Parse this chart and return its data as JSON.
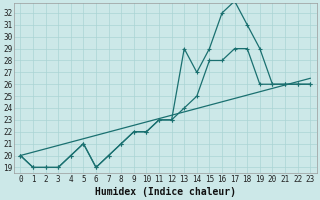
{
  "title": "",
  "xlabel": "Humidex (Indice chaleur)",
  "ylabel": "",
  "background_color": "#cce8e8",
  "line_color": "#1a7070",
  "xlim": [
    -0.5,
    23.5
  ],
  "ylim": [
    18.5,
    32.8
  ],
  "xticks": [
    0,
    1,
    2,
    3,
    4,
    5,
    6,
    7,
    8,
    9,
    10,
    11,
    12,
    13,
    14,
    15,
    16,
    17,
    18,
    19,
    20,
    21,
    22,
    23
  ],
  "yticks": [
    19,
    20,
    21,
    22,
    23,
    24,
    25,
    26,
    27,
    28,
    29,
    30,
    31,
    32
  ],
  "line1_x": [
    0,
    1,
    2,
    3,
    4,
    5,
    6,
    7,
    8,
    9,
    10,
    11,
    12,
    13,
    14,
    15,
    16,
    17,
    18,
    19,
    20,
    21,
    22,
    23
  ],
  "line1_y": [
    20,
    19,
    19,
    19,
    20,
    21,
    19,
    20,
    21,
    22,
    22,
    23,
    23,
    29,
    27,
    29,
    32,
    33,
    31,
    29,
    26,
    26,
    26,
    26
  ],
  "line2_x": [
    0,
    1,
    2,
    3,
    4,
    5,
    6,
    7,
    8,
    9,
    10,
    11,
    12,
    13,
    14,
    15,
    16,
    17,
    18,
    19,
    20,
    21,
    22,
    23
  ],
  "line2_y": [
    20,
    19,
    19,
    19,
    20,
    21,
    19,
    20,
    21,
    22,
    22,
    23,
    23,
    24,
    25,
    28,
    28,
    29,
    29,
    26,
    26,
    26,
    26,
    26
  ],
  "line3_x": [
    0,
    23
  ],
  "line3_y": [
    20,
    26.5
  ],
  "grid_color": "#aad4d4",
  "tick_fontsize": 5.5,
  "xlabel_fontsize": 7.0
}
